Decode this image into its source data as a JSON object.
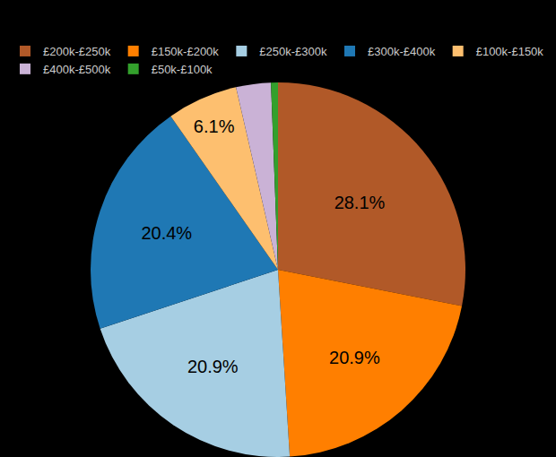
{
  "chart_data": {
    "type": "pie",
    "categories": [
      "£200k-£250k",
      "£150k-£200k",
      "£250k-£300k",
      "£300k-£400k",
      "£100k-£150k",
      "£400k-£500k",
      "£50k-£100k"
    ],
    "values": [
      28.1,
      20.9,
      20.9,
      20.4,
      6.1,
      3.0,
      0.6
    ],
    "value_labels": [
      "28.1%",
      "20.9%",
      "20.9%",
      "20.4%",
      "6.1%",
      null,
      null
    ],
    "colors": [
      "#b15928",
      "#ff7f00",
      "#a6cee3",
      "#1f78b4",
      "#fdbf6f",
      "#cab2d6",
      "#33a02c"
    ],
    "data_labels": true,
    "legend": "top"
  }
}
